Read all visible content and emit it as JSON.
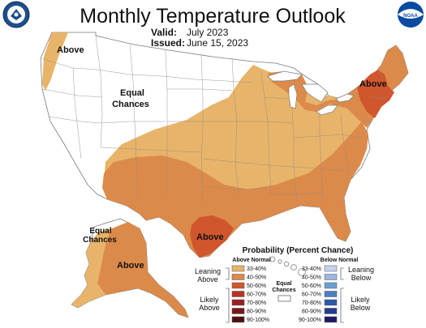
{
  "header": {
    "title": "Monthly Temperature Outlook",
    "valid_label": "Valid:",
    "valid_value": "July 2023",
    "issued_label": "Issued:",
    "issued_value": "June 15, 2023"
  },
  "logos": {
    "left": "seal-icon",
    "right": "noaa-logo-icon",
    "right_text": "NOAA"
  },
  "map_labels": {
    "northwest": "Above",
    "equal_chances_line1": "Equal",
    "equal_chances_line2": "Chances",
    "northeast": "Above",
    "texas": "Above",
    "alaska_equal_line1": "Equal",
    "alaska_equal_line2": "Chances",
    "alaska": "Above"
  },
  "legend": {
    "title": "Probability (Percent Chance)",
    "above_header": "Above Normal",
    "below_header": "Below Normal",
    "equal_label_line1": "Equal",
    "equal_label_line2": "Chances",
    "leaning_above": [
      "Leaning",
      "Above"
    ],
    "likely_above": [
      "Likely",
      "Above"
    ],
    "leaning_below": [
      "Leaning",
      "Below"
    ],
    "likely_below": [
      "Likely",
      "Below"
    ],
    "above_rows": [
      {
        "label": "33-40%",
        "color": "#e8b46a"
      },
      {
        "label": "40-50%",
        "color": "#dc8a4a"
      },
      {
        "label": "50-60%",
        "color": "#d0562e"
      },
      {
        "label": "60-70%",
        "color": "#b83224"
      },
      {
        "label": "70-80%",
        "color": "#98201e"
      },
      {
        "label": "80-90%",
        "color": "#781818"
      },
      {
        "label": "90-100%",
        "color": "#501010"
      }
    ],
    "below_rows": [
      {
        "label": "33-40%",
        "color": "#c4d2ec"
      },
      {
        "label": "40-50%",
        "color": "#9cb8e0"
      },
      {
        "label": "50-60%",
        "color": "#6c9ed2"
      },
      {
        "label": "60-70%",
        "color": "#4a7fc4"
      },
      {
        "label": "70-80%",
        "color": "#2c5aaa"
      },
      {
        "label": "80-90%",
        "color": "#243c8c"
      },
      {
        "label": "90-100%",
        "color": "#1c1c64"
      }
    ]
  }
}
